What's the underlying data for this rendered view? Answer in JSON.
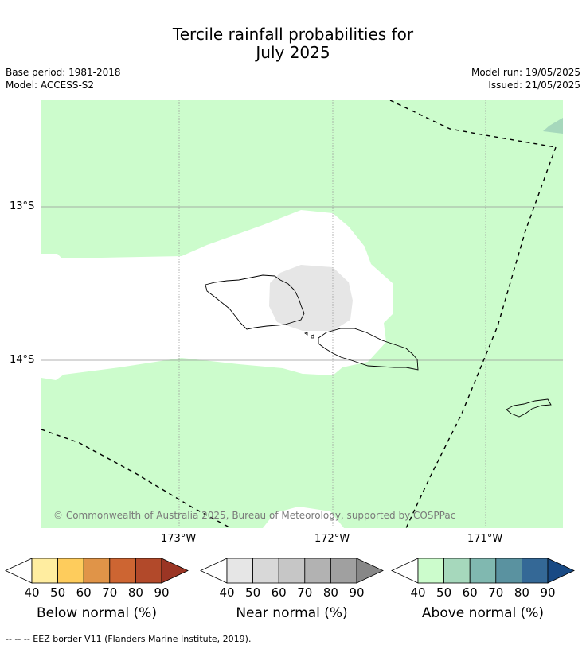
{
  "title_line1": "Tercile rainfall probabilities for",
  "title_line2": "July 2025",
  "base_period": "Base period: 1981-2018",
  "model": "Model: ACCESS-S2",
  "model_run": "Model run: 19/05/2025",
  "issued": "Issued: 21/05/2025",
  "axes": {
    "lat_labels": [
      "13°S",
      "14°S"
    ],
    "lon_labels": [
      "173°W",
      "172°W",
      "171°W"
    ]
  },
  "copyright": "© Commonwealth of Australia 2025, Bureau of Meteorology, supported by COSPPac",
  "colorbars": [
    {
      "label": "Below normal (%)",
      "ticks": [
        "40",
        "50",
        "60",
        "70",
        "80",
        "90"
      ],
      "colors": [
        "#ffeda0",
        "#fecc5c",
        "#e09448",
        "#cd6532",
        "#b2492a",
        "#9b3524"
      ]
    },
    {
      "label": "Near normal (%)",
      "ticks": [
        "40",
        "50",
        "60",
        "70",
        "80",
        "90"
      ],
      "colors": [
        "#e6e6e6",
        "#d8d8d8",
        "#c6c6c6",
        "#b2b2b2",
        "#a0a0a0",
        "#878787"
      ]
    },
    {
      "label": "Above normal (%)",
      "ticks": [
        "40",
        "50",
        "60",
        "70",
        "80",
        "90"
      ],
      "colors": [
        "#ccfccc",
        "#a6d8bc",
        "#80b8b0",
        "#5a92a0",
        "#346896",
        "#194a84"
      ]
    }
  ],
  "footnote": "--  --  -- EEZ border V11 (Flanders Marine Institute, 2019)."
}
